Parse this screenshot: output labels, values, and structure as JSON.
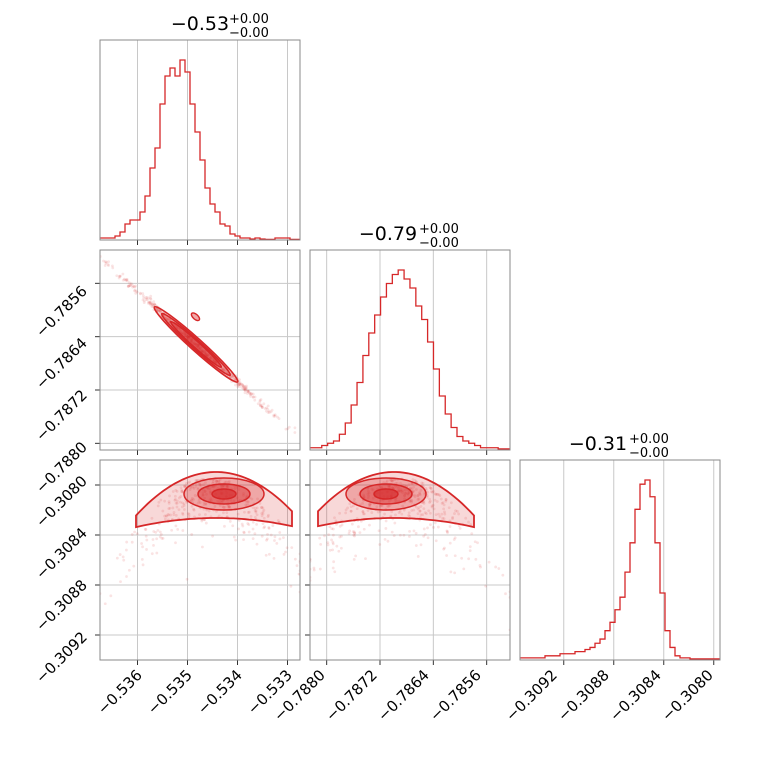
{
  "chart_data": [
    {
      "type": "histogram",
      "variable": "x",
      "title": {
        "main": "−0.53",
        "sup": "+0.00",
        "sub": "−0.00"
      },
      "x_ticks": [
        "−0.536",
        "−0.535",
        "−0.534",
        "−0.533"
      ],
      "x_tick_values": [
        -0.536,
        -0.535,
        -0.534,
        -0.533
      ],
      "xlim": [
        -0.53675,
        -0.53275
      ],
      "color": "#d62728",
      "bin_edges_start": -0.53675,
      "bin_width": 0.0001,
      "counts": [
        1,
        1,
        1,
        2,
        4,
        8,
        10,
        10,
        14,
        22,
        36,
        46,
        68,
        82,
        86,
        82,
        90,
        84,
        68,
        54,
        40,
        26,
        18,
        14,
        8,
        7,
        3,
        2,
        1,
        1,
        0.5,
        1,
        0.5,
        0.3,
        0.3,
        1,
        1,
        1,
        0.3,
        0.3
      ]
    },
    {
      "type": "histogram",
      "variable": "y",
      "title": {
        "main": "−0.79",
        "sup": "+0.00",
        "sub": "−0.00"
      },
      "x_ticks": [
        "−0.7880",
        "−0.7872",
        "−0.7864",
        "−0.7856"
      ],
      "x_tick_values": [
        -0.788,
        -0.7872,
        -0.7864,
        -0.7856
      ],
      "xlim": [
        -0.78825,
        -0.78525
      ],
      "color": "#d62728",
      "bin_edges_start": -0.78825,
      "bin_width": 8.82e-05,
      "counts": [
        1,
        1,
        2,
        3,
        4,
        7,
        12,
        20,
        30,
        42,
        52,
        60,
        68,
        74,
        78,
        80,
        76,
        72,
        64,
        58,
        48,
        36,
        24,
        16,
        10,
        6,
        4,
        3,
        2,
        1,
        1,
        1,
        0.5,
        0.5
      ]
    },
    {
      "type": "histogram",
      "variable": "z",
      "title": {
        "main": "−0.31",
        "sup": "+0.00",
        "sub": "−0.00"
      },
      "x_ticks": [
        "−0.3092",
        "−0.3088",
        "−0.3084",
        "−0.3080"
      ],
      "x_tick_values": [
        -0.3092,
        -0.3088,
        -0.3084,
        -0.308
      ],
      "xlim": [
        -0.30955,
        -0.30795
      ],
      "color": "#d62728",
      "bin_edges_start": -0.30955,
      "bin_width": 4e-05,
      "counts": [
        1,
        1,
        1,
        1,
        1,
        2,
        2,
        2,
        3,
        3,
        3,
        4,
        4,
        5,
        6,
        8,
        10,
        14,
        18,
        24,
        30,
        42,
        56,
        72,
        84,
        86,
        78,
        56,
        32,
        14,
        6,
        2,
        1,
        1,
        0.5,
        0.5,
        0.5,
        0.5,
        0.5,
        0.5
      ]
    },
    {
      "type": "scatter",
      "variables": [
        "x",
        "y"
      ],
      "xlim": [
        -0.53675,
        -0.53275
      ],
      "ylim": [
        -0.7881,
        -0.7851
      ],
      "y_ticks": [
        "−0.7856",
        "−0.7864",
        "−0.7872",
        "−0.7880"
      ],
      "y_tick_values": [
        -0.7856,
        -0.7864,
        -0.7872,
        -0.788
      ],
      "trend": {
        "slope": -0.75,
        "intercept_at_x": -0.53675,
        "y_at_intercept": -0.7852
      },
      "color": "#d62728"
    },
    {
      "type": "scatter",
      "variables": [
        "x",
        "z"
      ],
      "xlim": [
        -0.53675,
        -0.53275
      ],
      "ylim": [
        -0.3094,
        -0.3078
      ],
      "y_ticks": [
        "−0.3080",
        "−0.3084",
        "−0.3088",
        "−0.3092"
      ],
      "y_tick_values": [
        -0.308,
        -0.3084,
        -0.3088,
        -0.3092
      ],
      "color": "#d62728"
    },
    {
      "type": "scatter",
      "variables": [
        "y",
        "z"
      ],
      "xlim": [
        -0.78825,
        -0.78525
      ],
      "ylim": [
        -0.3094,
        -0.3078
      ],
      "color": "#d62728"
    }
  ]
}
